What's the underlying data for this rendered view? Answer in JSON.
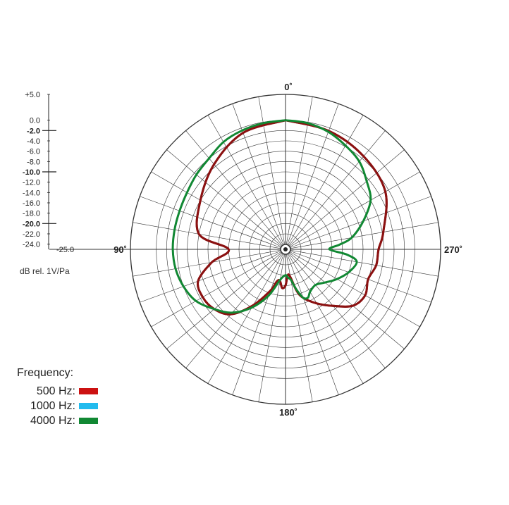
{
  "chart_data": {
    "type": "polar",
    "angle_labels": {
      "top": "0˚",
      "left": "90˚",
      "right": "270˚",
      "bottom": "180˚"
    },
    "radial_range_db": [
      -25.0,
      5.0
    ],
    "scale_ticks": [
      "+5.0",
      "0.0",
      "-2.0",
      "-4.0",
      "-6.0",
      "-8.0",
      "-10.0",
      "-12.0",
      "-14.0",
      "-16.0",
      "-18.0",
      "-20.0",
      "-22.0",
      "-24.0",
      "-25.0"
    ],
    "scale_tick_values": [
      5,
      0,
      -2,
      -4,
      -6,
      -8,
      -10,
      -12,
      -14,
      -16,
      -18,
      -20,
      -22,
      -24,
      -25
    ],
    "major_ticks": [
      "-2.0",
      "-10.0",
      "-20.0"
    ],
    "unit_label": "dB rel. 1V/Pa",
    "grid": true,
    "angle_step_deg": 10,
    "legend": {
      "title": "Frequency:",
      "entries": [
        {
          "label": "500 Hz:",
          "color": "#cc1111"
        },
        {
          "label": "1000 Hz:",
          "color": "#22bbee"
        },
        {
          "label": "4000 Hz:",
          "color": "#118833"
        }
      ]
    },
    "series": [
      {
        "label": "500 Hz",
        "color": "#8b1111",
        "theta_deg": [
          0,
          20,
          40,
          60,
          80,
          90,
          100,
          110,
          120,
          130,
          140,
          150,
          160,
          165,
          170,
          175,
          180,
          185,
          190,
          195,
          200,
          210,
          220,
          230,
          240,
          250,
          260,
          270,
          280,
          300,
          320,
          340,
          360
        ],
        "r_db": [
          0,
          -1,
          -3.5,
          -6,
          -8,
          -14,
          -10.5,
          -7,
          -6.5,
          -7,
          -8.6,
          -12.5,
          -16.5,
          -18.6,
          -18.8,
          -17.5,
          -18,
          -20,
          -19.5,
          -16.7,
          -15,
          -12.9,
          -10.7,
          -8,
          -7.2,
          -8,
          -7.2,
          -7,
          -5.8,
          -2.7,
          -1.5,
          -0.6,
          0
        ]
      },
      {
        "label": "1000 Hz",
        "color": "#8b1111",
        "theta_deg": [
          0,
          20,
          40,
          60,
          80,
          90,
          100,
          110,
          120,
          130,
          140,
          150,
          160,
          165,
          170,
          175,
          180,
          185,
          190,
          195,
          200,
          210,
          220,
          230,
          240,
          250,
          260,
          270,
          280,
          300,
          320,
          340,
          360
        ],
        "r_db": [
          0,
          -1,
          -3.5,
          -6,
          -8,
          -14,
          -10.5,
          -7,
          -6.5,
          -7,
          -8.6,
          -12.5,
          -16.5,
          -18.6,
          -18.8,
          -17.5,
          -18,
          -20,
          -19.5,
          -16.7,
          -15,
          -12.9,
          -10.7,
          -8,
          -7.2,
          -8,
          -7.2,
          -7,
          -5.8,
          -2.7,
          -1.5,
          -0.6,
          0
        ]
      },
      {
        "label": "4000 Hz",
        "color": "#118833",
        "theta_deg": [
          0,
          10,
          20,
          30,
          40,
          50,
          60,
          70,
          80,
          90,
          100,
          110,
          120,
          130,
          140,
          150,
          160,
          170,
          180,
          185,
          190,
          195,
          200,
          205,
          210,
          220,
          230,
          240,
          250,
          260,
          265,
          270,
          275,
          280,
          290,
          300,
          310,
          320,
          330,
          340,
          350,
          360
        ],
        "r_db": [
          0,
          -0.2,
          -0.5,
          -1,
          -2,
          -2.5,
          -3,
          -3.2,
          -3.2,
          -3.2,
          -3.4,
          -4,
          -5,
          -7,
          -9,
          -12,
          -15.5,
          -19,
          -20,
          -19.5,
          -19,
          -17,
          -15,
          -14.7,
          -15.5,
          -16,
          -15,
          -13.5,
          -12,
          -11,
          -13,
          -16.5,
          -14.5,
          -12,
          -9,
          -6,
          -4.5,
          -2.8,
          -1.8,
          -0.8,
          -0.2,
          0
        ]
      }
    ]
  }
}
